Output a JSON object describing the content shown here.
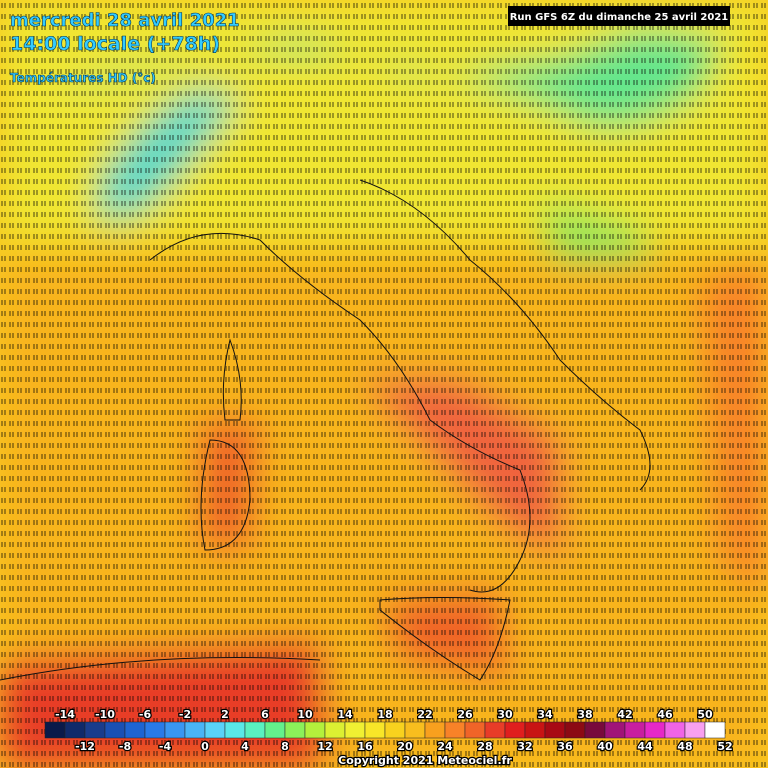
{
  "header": {
    "date": "mercredi 28 avril 2021",
    "time": "14:00 locale (+78h)",
    "subtitle": "Températures HD (°c)",
    "run": "Run GFS 6Z du dimanche 25 avril 2021"
  },
  "legend": {
    "ticks": [
      -14,
      -12,
      -10,
      -8,
      -6,
      -4,
      -2,
      0,
      2,
      4,
      6,
      8,
      10,
      12,
      14,
      16,
      18,
      20,
      22,
      24,
      26,
      28,
      30,
      32,
      34,
      36,
      38,
      40,
      42,
      44,
      46,
      48,
      50,
      52
    ],
    "colors": [
      "#0a1a4a",
      "#102a6a",
      "#1a3c8c",
      "#1a50b4",
      "#1e64d2",
      "#2a7ae8",
      "#3a96f2",
      "#4ab4f6",
      "#5ad2f8",
      "#5ae8e8",
      "#5af0c0",
      "#64f08c",
      "#8cf05a",
      "#b4f03c",
      "#dcf032",
      "#f0f032",
      "#f8e628",
      "#f8d21e",
      "#f8be1e",
      "#f8a01e",
      "#f88228",
      "#f06428",
      "#e83c28",
      "#e01e1e",
      "#c81414",
      "#a80a14",
      "#8c0a14",
      "#780a3c",
      "#a01478",
      "#c81ea0",
      "#e628c8",
      "#f064e6",
      "#f8a0f0",
      "#ffffff"
    ]
  },
  "footer": {
    "copyright": "Copyright 2021 Meteociel.fr"
  }
}
